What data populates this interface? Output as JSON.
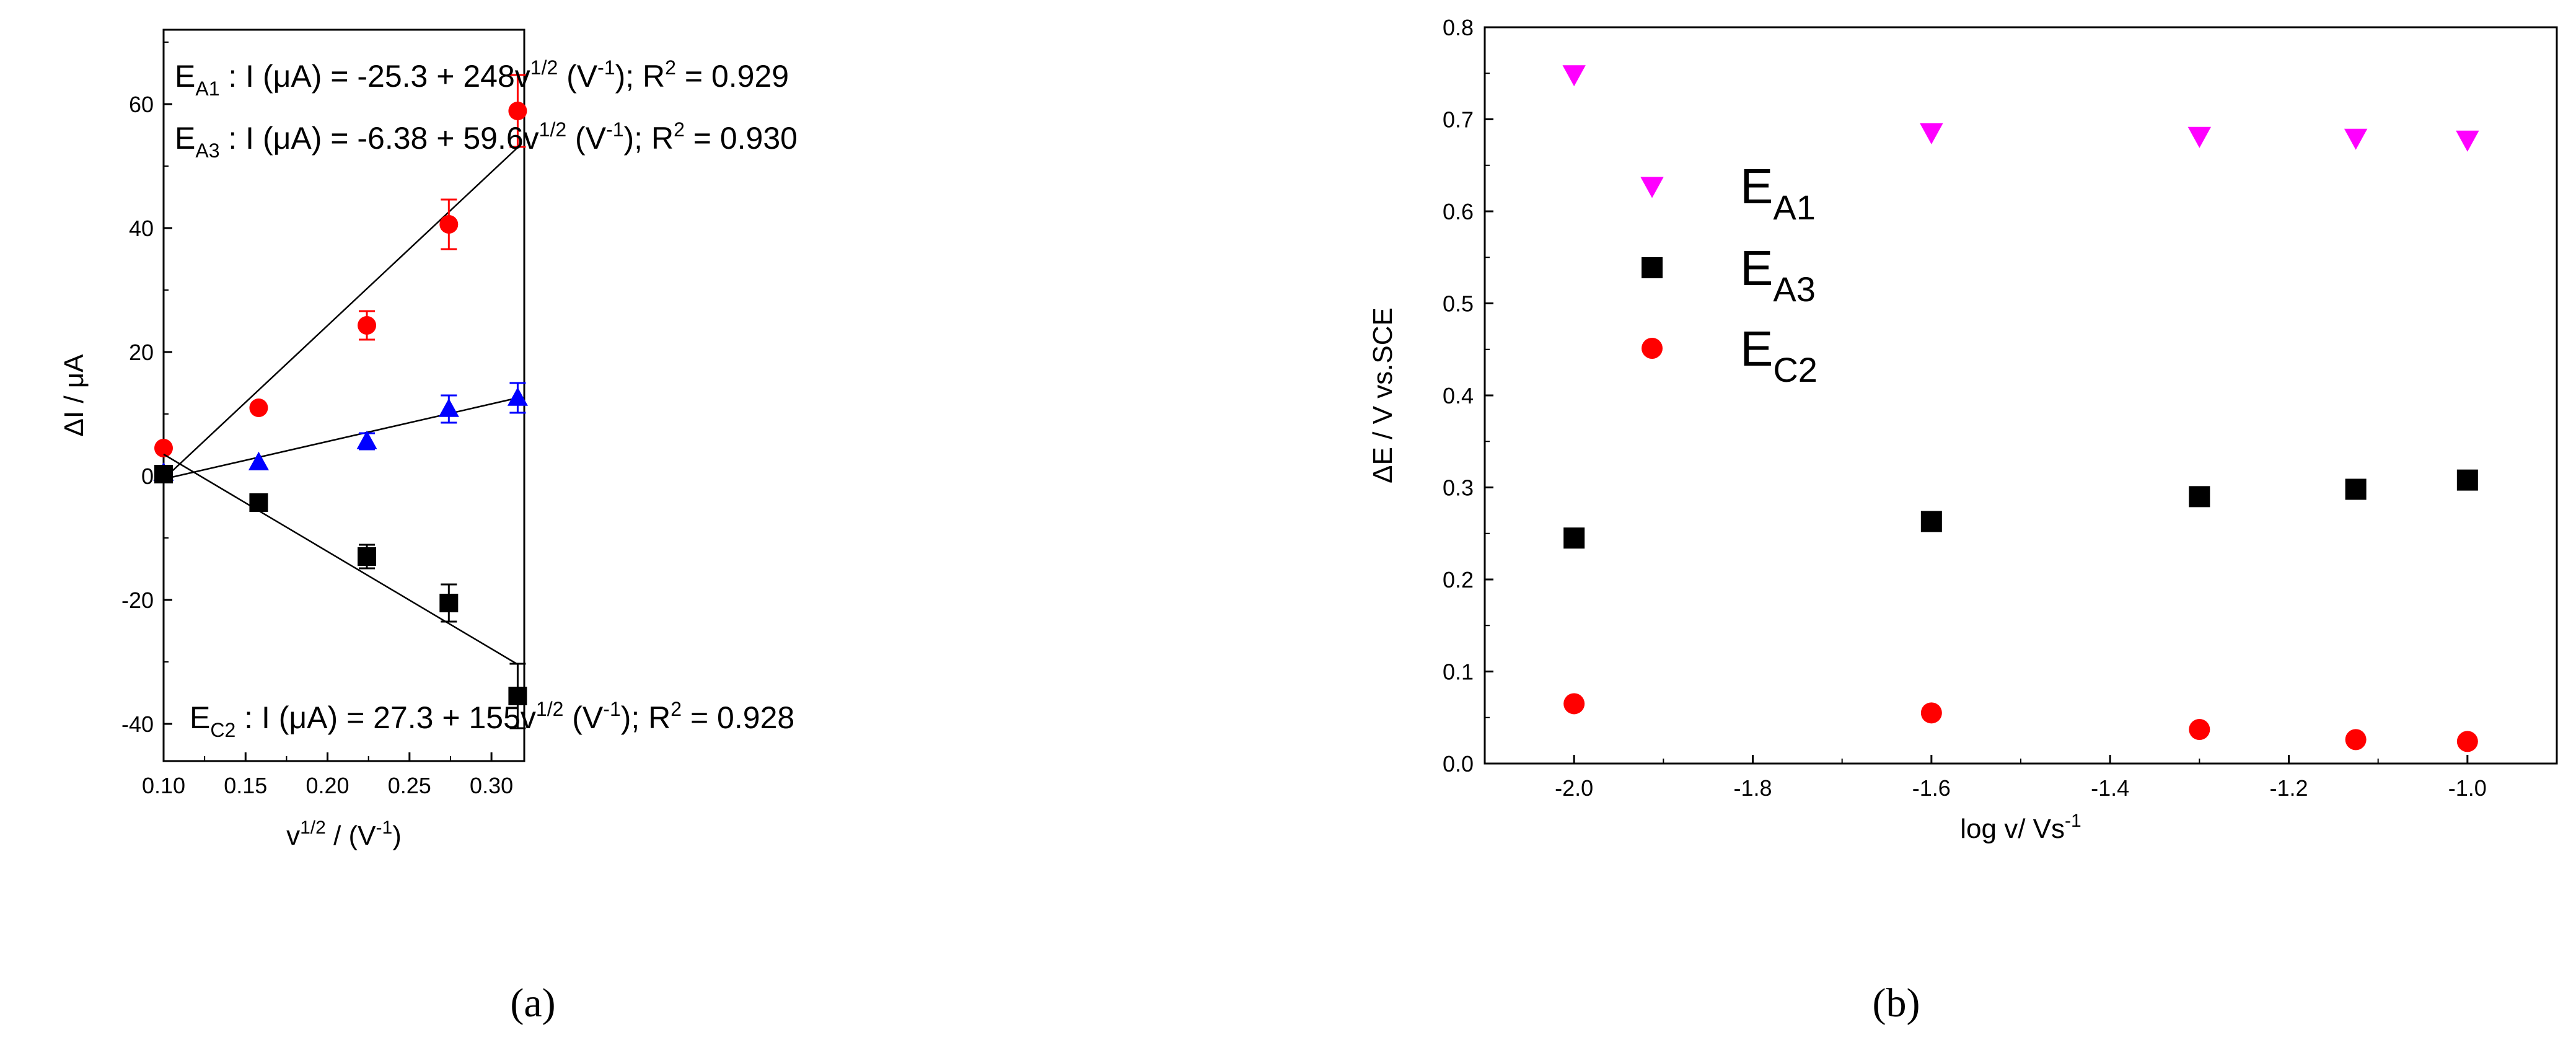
{
  "chart_data": [
    {
      "type": "scatter",
      "panel_label": "(a)",
      "xlabel_base": "v",
      "xlabel_sup": "1/2",
      "xlabel_mid": " / (V",
      "xlabel_sup2": "-1",
      "xlabel_end": ")",
      "ylabel": "ΔI / μA",
      "xlim": [
        0.1,
        0.32
      ],
      "ylim": [
        -46,
        72
      ],
      "xticks": [
        0.1,
        0.15,
        0.2,
        0.25,
        0.3
      ],
      "xtick_labels": [
        "0.10",
        "0.15",
        "0.20",
        "0.25",
        "0.30"
      ],
      "yticks": [
        -40,
        -20,
        0,
        20,
        40,
        60
      ],
      "ytick_labels": [
        "-40",
        "-20",
        "0",
        "20",
        "40",
        "60"
      ],
      "series": [
        {
          "name": "EA1",
          "color": "#ff0000",
          "marker": "circle",
          "x": [
            0.1,
            0.158,
            0.224,
            0.274,
            0.316
          ],
          "y": [
            4.5,
            11,
            24.3,
            40.6,
            58.9
          ],
          "err": [
            0,
            0,
            2.3,
            4.0,
            5.8
          ],
          "fit": {
            "x": [
              0.1,
              0.316
            ],
            "y": [
              -0.5,
              53
            ]
          }
        },
        {
          "name": "EA3",
          "color": "#0000ff",
          "marker": "triangle",
          "x": [
            0.1,
            0.158,
            0.224,
            0.274,
            0.316
          ],
          "y": [
            0.5,
            2.2,
            5.6,
            10.8,
            12.6
          ],
          "err": [
            0,
            0,
            1.3,
            2.2,
            2.4
          ],
          "fit": {
            "x": [
              0.1,
              0.316
            ],
            "y": [
              -0.5,
              12.6
            ]
          }
        },
        {
          "name": "EC2",
          "color": "#000000",
          "marker": "square",
          "x": [
            0.1,
            0.158,
            0.224,
            0.274,
            0.316
          ],
          "y": [
            0.3,
            -4.3,
            -13.0,
            -20.5,
            -35.5
          ],
          "err": [
            0,
            0,
            1.9,
            3.0,
            5.2
          ],
          "fit": {
            "x": [
              0.1,
              0.316
            ],
            "y": [
              3.5,
              -30.4
            ]
          }
        }
      ],
      "annotations": [
        {
          "sub": "A1",
          "pre": "E",
          "body": " : I (μA) = -25.3 + 248v",
          "sup": "1/2",
          "mid": " (V",
          "sup2": "-1",
          "end": "); R",
          "sup3": "2",
          "tail": " = 0.929"
        },
        {
          "sub": "A3",
          "pre": "E",
          "body": " : I (μA) = -6.38 + 59.6v",
          "sup": "1/2",
          "mid": " (V",
          "sup2": "-1",
          "end": "); R",
          "sup3": "2",
          "tail": " = 0.930"
        },
        {
          "sub": "C2",
          "pre": "E",
          "body": " : I (μA) = 27.3 + 155v",
          "sup": "1/2",
          "mid": " (V",
          "sup2": "-1",
          "end": "); R",
          "sup3": "2",
          "tail": " = 0.928"
        }
      ]
    },
    {
      "type": "scatter",
      "panel_label": "(b)",
      "xlabel": "log v/ Vs",
      "xlabel_sup": "-1",
      "ylabel": "ΔE / V vs.SCE",
      "xlim": [
        -2.1,
        -0.9
      ],
      "ylim": [
        0.0,
        0.8
      ],
      "xticks": [
        -2.0,
        -1.8,
        -1.6,
        -1.4,
        -1.2,
        -1.0
      ],
      "xtick_labels": [
        "-2.0",
        "-1.8",
        "-1.6",
        "-1.4",
        "-1.2",
        "-1.0"
      ],
      "yticks": [
        0.0,
        0.1,
        0.2,
        0.3,
        0.4,
        0.5,
        0.6,
        0.7,
        0.8
      ],
      "ytick_labels": [
        "0.0",
        "0.1",
        "0.2",
        "0.3",
        "0.4",
        "0.5",
        "0.6",
        "0.7",
        "0.8"
      ],
      "series": [
        {
          "name": "EA1",
          "label_main": "E",
          "label_sub": "A1",
          "color": "#ff00ff",
          "marker": "triangle-down",
          "x": [
            -2.0,
            -1.6,
            -1.3,
            -1.125,
            -1.0
          ],
          "y": [
            0.749,
            0.686,
            0.682,
            0.68,
            0.678
          ]
        },
        {
          "name": "EA3",
          "label_main": "E",
          "label_sub": "A3",
          "color": "#000000",
          "marker": "square",
          "x": [
            -2.0,
            -1.6,
            -1.3,
            -1.125,
            -1.0
          ],
          "y": [
            0.245,
            0.263,
            0.29,
            0.298,
            0.308
          ]
        },
        {
          "name": "EC2",
          "label_main": "E",
          "label_sub": "C2",
          "color": "#ff0000",
          "marker": "circle",
          "x": [
            -2.0,
            -1.6,
            -1.3,
            -1.125,
            -1.0
          ],
          "y": [
            0.065,
            0.055,
            0.037,
            0.026,
            0.024
          ]
        }
      ],
      "legend_position": "upper-left"
    }
  ]
}
